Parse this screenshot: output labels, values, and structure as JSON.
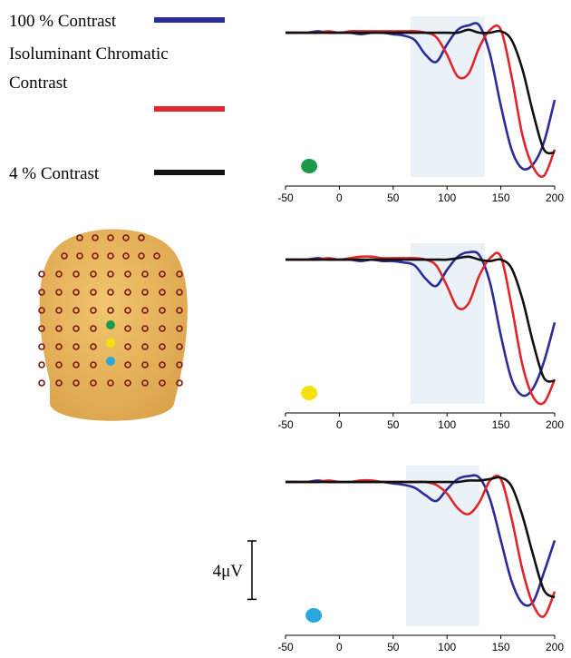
{
  "legend": [
    {
      "lines": [
        "100 % Contrast"
      ],
      "color": "#2b2b9c"
    },
    {
      "lines": [
        "Isoluminant Chromatic",
        "Contrast"
      ],
      "color": "#e0262b"
    },
    {
      "lines": [
        "4 % Contrast"
      ],
      "color": "#111111"
    }
  ],
  "scale_bar": {
    "label": "4μV",
    "value": 4
  },
  "chart_data": [
    {
      "type": "line",
      "marker_color": "#1a9a4a",
      "highlight": [
        66,
        135
      ],
      "x": [
        -50,
        -40,
        -30,
        -20,
        -10,
        0,
        10,
        20,
        30,
        40,
        50,
        60,
        70,
        80,
        90,
        100,
        110,
        120,
        130,
        140,
        150,
        160,
        170,
        180,
        190,
        200
      ],
      "xlim": [
        -50,
        200
      ],
      "xticks": [
        -50,
        0,
        50,
        100,
        150,
        200
      ],
      "ylim": [
        -10.5,
        0.5
      ],
      "series": [
        {
          "values": [
            0,
            0,
            0,
            0.1,
            0,
            0,
            0,
            -0.1,
            0,
            0,
            -0.1,
            -0.2,
            -0.5,
            -1.5,
            -2,
            -0.8,
            0.2,
            0.5,
            0.5,
            -1.5,
            -5,
            -8,
            -9.3,
            -9,
            -7.5,
            -4.6
          ]
        },
        {
          "values": [
            0,
            0,
            0,
            0,
            0.1,
            0,
            0.1,
            0.1,
            0.1,
            0.1,
            0.1,
            0.1,
            0.1,
            0,
            -0.3,
            -1.5,
            -3,
            -2.8,
            -1,
            0.2,
            0.2,
            -3,
            -7,
            -9.2,
            -9.8,
            -8
          ]
        },
        {
          "values": [
            0,
            0,
            0,
            0,
            0,
            0,
            0,
            0,
            0,
            0,
            0,
            0,
            0,
            0,
            0,
            0,
            0,
            0.2,
            0,
            0,
            0.1,
            -0.5,
            -2.5,
            -5.5,
            -8,
            -8.2
          ]
        }
      ]
    },
    {
      "type": "line",
      "marker_color": "#f5e10a",
      "highlight": [
        66,
        135
      ],
      "x": [
        -50,
        -40,
        -30,
        -20,
        -10,
        0,
        10,
        20,
        30,
        40,
        50,
        60,
        70,
        80,
        90,
        100,
        110,
        120,
        130,
        140,
        150,
        160,
        170,
        180,
        190,
        200
      ],
      "xlim": [
        -50,
        200
      ],
      "xticks": [
        -50,
        0,
        50,
        100,
        150,
        200
      ],
      "ylim": [
        -10.5,
        0.5
      ],
      "series": [
        {
          "values": [
            0,
            0,
            0,
            0.1,
            0,
            0,
            0,
            -0.1,
            0,
            -0.1,
            -0.1,
            -0.2,
            -0.4,
            -1.3,
            -1.8,
            -0.7,
            0.2,
            0.5,
            0.3,
            -1.6,
            -5.2,
            -8.2,
            -9.3,
            -8.8,
            -7,
            -4.3
          ]
        },
        {
          "values": [
            0,
            0,
            0,
            0,
            0.1,
            0,
            0.1,
            0.2,
            0.2,
            0.1,
            0.1,
            0.1,
            0.1,
            0,
            -0.4,
            -1.8,
            -3.3,
            -3,
            -1.1,
            0.1,
            0.2,
            -3.2,
            -7.2,
            -9.4,
            -9.8,
            -8.2
          ]
        },
        {
          "values": [
            0,
            0,
            0,
            0,
            0,
            0,
            0,
            0,
            0,
            0,
            0,
            0,
            0,
            0,
            0,
            0,
            0.1,
            0.2,
            0,
            -0.1,
            0,
            -0.6,
            -2.7,
            -5.7,
            -8.1,
            -8.3
          ]
        }
      ]
    },
    {
      "type": "line",
      "marker_color": "#29a8e0",
      "highlight": [
        62,
        130
      ],
      "x": [
        -50,
        -40,
        -30,
        -20,
        -10,
        0,
        10,
        20,
        30,
        40,
        50,
        60,
        70,
        80,
        90,
        100,
        110,
        120,
        130,
        140,
        150,
        160,
        170,
        180,
        190,
        200
      ],
      "xlim": [
        -50,
        200
      ],
      "xticks": [
        -50,
        0,
        50,
        100,
        150,
        200
      ],
      "ylim": [
        -10.5,
        0.5
      ],
      "series": [
        {
          "values": [
            0,
            0,
            0,
            0.1,
            0,
            0,
            0,
            0,
            0,
            0,
            -0.1,
            -0.2,
            -0.4,
            -0.9,
            -1.3,
            -0.5,
            0.2,
            0.4,
            0.3,
            -1.2,
            -4,
            -6.8,
            -8.3,
            -8.2,
            -6.2,
            -4
          ]
        },
        {
          "values": [
            0,
            0,
            0,
            0,
            0.1,
            0,
            0,
            0.1,
            0.1,
            0,
            0,
            0,
            0,
            0,
            -0.2,
            -0.8,
            -1.8,
            -2.2,
            -1.4,
            0.1,
            0.2,
            -2.5,
            -6,
            -8.4,
            -9.2,
            -7.5
          ]
        },
        {
          "values": [
            0,
            0,
            0,
            0,
            0,
            0,
            0,
            0,
            0,
            0,
            0,
            0,
            0,
            0,
            0,
            0,
            0,
            0.1,
            0.1,
            0.2,
            0.3,
            -0.3,
            -2.3,
            -5,
            -7.4,
            -7.9
          ]
        }
      ]
    }
  ]
}
